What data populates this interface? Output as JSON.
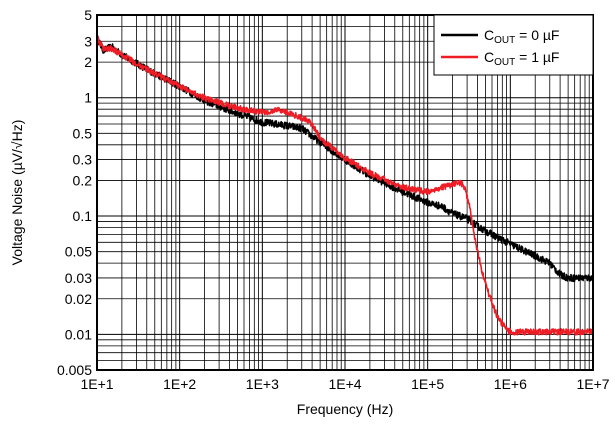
{
  "chart_data": {
    "type": "line",
    "title": "",
    "xlabel": "Frequency (Hz)",
    "ylabel": "Voltage Noise (µV/√Hz)",
    "xscale": "log",
    "yscale": "log",
    "xlim": [
      10,
      10000000
    ],
    "ylim": [
      0.005,
      5
    ],
    "grid": true,
    "legend_position": "top-right",
    "x_ticks": [
      {
        "value": 10,
        "label": "1E+1"
      },
      {
        "value": 100,
        "label": "1E+2"
      },
      {
        "value": 1000,
        "label": "1E+3"
      },
      {
        "value": 10000,
        "label": "1E+4"
      },
      {
        "value": 100000,
        "label": "1E+5"
      },
      {
        "value": 1000000,
        "label": "1E+6"
      },
      {
        "value": 10000000,
        "label": "1E+7"
      }
    ],
    "y_ticks": [
      {
        "value": 5,
        "label": "5"
      },
      {
        "value": 3,
        "label": "3"
      },
      {
        "value": 2,
        "label": "2"
      },
      {
        "value": 1,
        "label": "1"
      },
      {
        "value": 0.5,
        "label": "0.5"
      },
      {
        "value": 0.3,
        "label": "0.3"
      },
      {
        "value": 0.2,
        "label": "0.2"
      },
      {
        "value": 0.1,
        "label": "0.1"
      },
      {
        "value": 0.05,
        "label": "0.05"
      },
      {
        "value": 0.03,
        "label": "0.03"
      },
      {
        "value": 0.02,
        "label": "0.02"
      },
      {
        "value": 0.01,
        "label": "0.01"
      },
      {
        "value": 0.005,
        "label": "0.005"
      }
    ],
    "series": [
      {
        "legend_main": "C",
        "legend_sub": "OUT",
        "legend_rest": " = 0 µF",
        "color": "#000000",
        "noise": 0.06,
        "points": [
          [
            10,
            3.2
          ],
          [
            12,
            2.5
          ],
          [
            15,
            2.7
          ],
          [
            20,
            2.3
          ],
          [
            30,
            1.95
          ],
          [
            50,
            1.6
          ],
          [
            100,
            1.25
          ],
          [
            200,
            0.95
          ],
          [
            400,
            0.78
          ],
          [
            700,
            0.68
          ],
          [
            1000,
            0.62
          ],
          [
            2000,
            0.58
          ],
          [
            3000,
            0.55
          ],
          [
            5000,
            0.42
          ],
          [
            10000,
            0.3
          ],
          [
            20000,
            0.22
          ],
          [
            50000,
            0.16
          ],
          [
            100000,
            0.13
          ],
          [
            150000,
            0.12
          ],
          [
            200000,
            0.105
          ],
          [
            300000,
            0.095
          ],
          [
            400000,
            0.082
          ],
          [
            500000,
            0.075
          ],
          [
            700000,
            0.066
          ],
          [
            1000000,
            0.058
          ],
          [
            2000000,
            0.046
          ],
          [
            3000000,
            0.04
          ],
          [
            4000000,
            0.032
          ],
          [
            5000000,
            0.03
          ],
          [
            10000000,
            0.03
          ]
        ]
      },
      {
        "legend_main": "C",
        "legend_sub": "OUT",
        "legend_rest": " = 1 µF",
        "color": "#ee1c25",
        "noise": 0.05,
        "points": [
          [
            10,
            3.2
          ],
          [
            12,
            2.6
          ],
          [
            15,
            2.6
          ],
          [
            20,
            2.3
          ],
          [
            30,
            1.95
          ],
          [
            50,
            1.6
          ],
          [
            100,
            1.25
          ],
          [
            200,
            1.0
          ],
          [
            400,
            0.85
          ],
          [
            700,
            0.78
          ],
          [
            1000,
            0.76
          ],
          [
            1200,
            0.74
          ],
          [
            1500,
            0.8
          ],
          [
            2000,
            0.75
          ],
          [
            3000,
            0.68
          ],
          [
            4000,
            0.6
          ],
          [
            5000,
            0.45
          ],
          [
            10000,
            0.31
          ],
          [
            20000,
            0.23
          ],
          [
            50000,
            0.175
          ],
          [
            100000,
            0.16
          ],
          [
            150000,
            0.175
          ],
          [
            200000,
            0.185
          ],
          [
            250000,
            0.19
          ],
          [
            280000,
            0.175
          ],
          [
            320000,
            0.12
          ],
          [
            380000,
            0.06
          ],
          [
            450000,
            0.035
          ],
          [
            550000,
            0.022
          ],
          [
            700000,
            0.014
          ],
          [
            900000,
            0.011
          ],
          [
            1000000,
            0.0105
          ],
          [
            10000000,
            0.0105
          ]
        ]
      }
    ]
  }
}
